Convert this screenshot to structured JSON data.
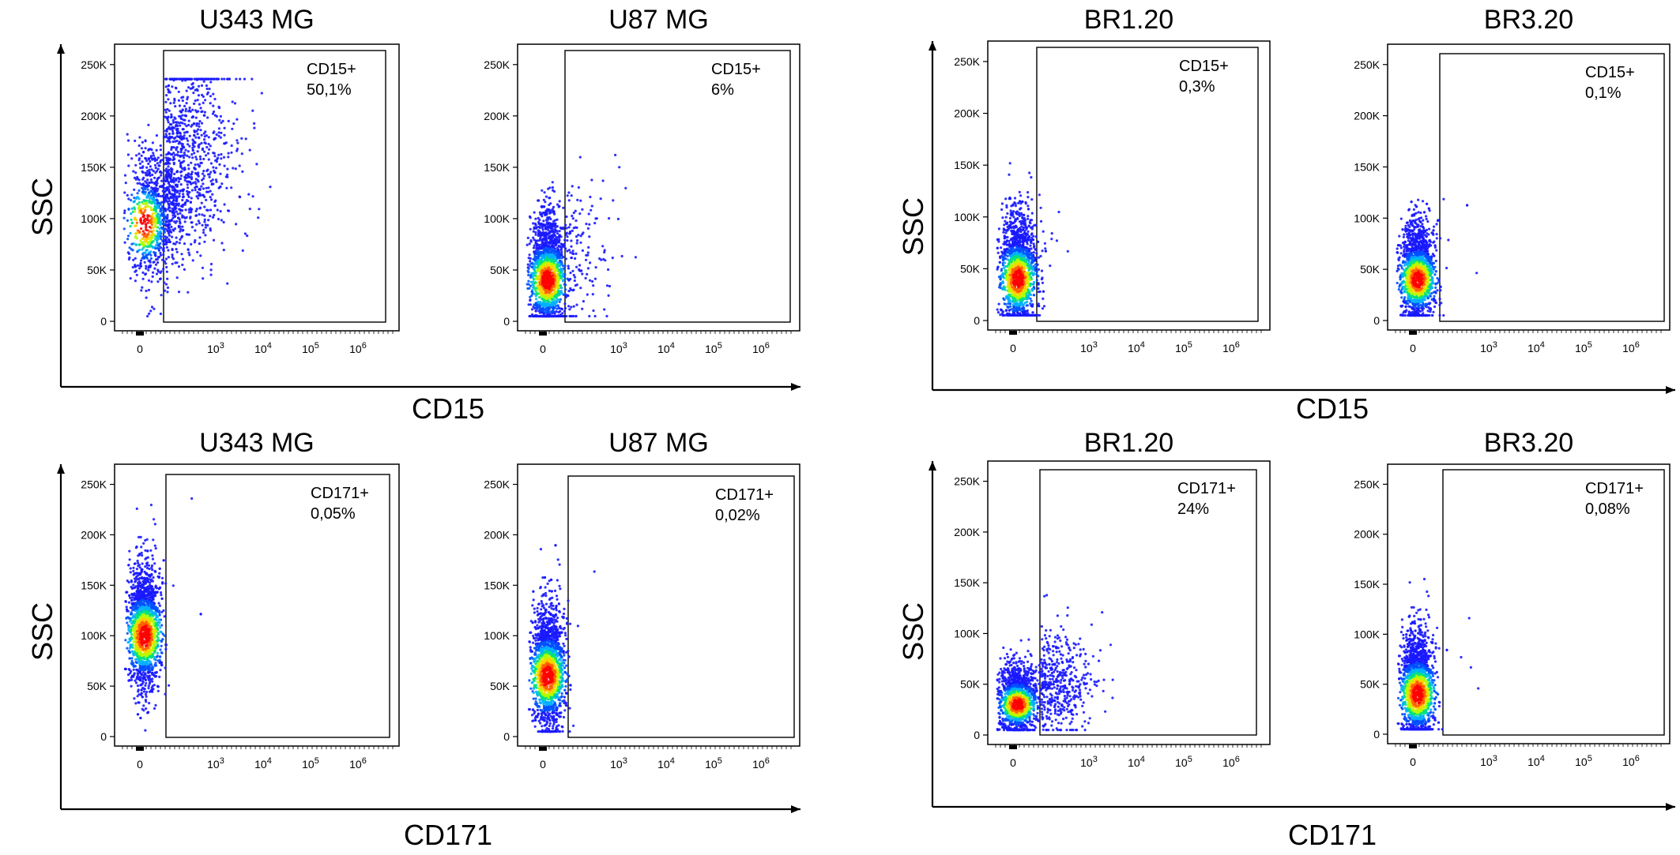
{
  "chart_data": [
    {
      "type": "scatter",
      "title": "U343 MG",
      "xlabel": "CD15",
      "ylabel": "SSC",
      "xticks": [
        "0",
        "10^3",
        "10^4",
        "10^5",
        "10^6"
      ],
      "yticks": [
        "0",
        "50K",
        "100K",
        "150K",
        "200K",
        "250K"
      ],
      "ylim": [
        0,
        262144
      ],
      "gate": {
        "label": "CD15+",
        "value": "50,1%"
      },
      "distribution": {
        "x_center": 0.35,
        "x_spread": 0.35,
        "y_center": 95000,
        "y_spread": 45000,
        "pos_fraction": 0.501
      }
    },
    {
      "type": "scatter",
      "title": "U87 MG",
      "xlabel": "CD15",
      "ylabel": "SSC",
      "xticks": [
        "0",
        "10^3",
        "10^4",
        "10^5",
        "10^6"
      ],
      "yticks": [
        "0",
        "50K",
        "100K",
        "150K",
        "200K",
        "250K"
      ],
      "ylim": [
        0,
        262144
      ],
      "gate": {
        "label": "CD15+",
        "value": "6%"
      },
      "distribution": {
        "x_center": 0.2,
        "x_spread": 0.15,
        "y_center": 40000,
        "y_spread": 40000,
        "pos_fraction": 0.06
      }
    },
    {
      "type": "scatter",
      "title": "BR1.20",
      "xlabel": "CD15",
      "ylabel": "SSC",
      "xticks": [
        "0",
        "10^3",
        "10^4",
        "10^5",
        "10^6"
      ],
      "yticks": [
        "0",
        "50K",
        "100K",
        "150K",
        "200K",
        "250K"
      ],
      "ylim": [
        0,
        262144
      ],
      "gate": {
        "label": "CD15+",
        "value": "0,3%"
      },
      "distribution": {
        "x_center": 0.22,
        "x_spread": 0.18,
        "y_center": 40000,
        "y_spread": 40000,
        "pos_fraction": 0.003
      }
    },
    {
      "type": "scatter",
      "title": "BR3.20",
      "xlabel": "CD15",
      "ylabel": "SSC",
      "xticks": [
        "0",
        "10^3",
        "10^4",
        "10^5",
        "10^6"
      ],
      "yticks": [
        "0",
        "50K",
        "100K",
        "150K",
        "200K",
        "250K"
      ],
      "ylim": [
        0,
        262144
      ],
      "gate": {
        "label": "CD15+",
        "value": "0,1%"
      },
      "distribution": {
        "x_center": 0.2,
        "x_spread": 0.15,
        "y_center": 40000,
        "y_spread": 35000,
        "pos_fraction": 0.001
      }
    },
    {
      "type": "scatter",
      "title": "U343 MG",
      "xlabel": "CD171",
      "ylabel": "SSC",
      "xticks": [
        "0",
        "10^3",
        "10^4",
        "10^5",
        "10^6"
      ],
      "yticks": [
        "0",
        "50K",
        "100K",
        "150K",
        "200K",
        "250K"
      ],
      "ylim": [
        0,
        262144
      ],
      "gate": {
        "label": "CD171+",
        "value": "0,05%"
      },
      "distribution": {
        "x_center": 0.2,
        "x_spread": 0.12,
        "y_center": 100000,
        "y_spread": 45000,
        "pos_fraction": 0.0005
      }
    },
    {
      "type": "scatter",
      "title": "U87 MG",
      "xlabel": "CD171",
      "ylabel": "SSC",
      "xticks": [
        "0",
        "10^3",
        "10^4",
        "10^5",
        "10^6"
      ],
      "yticks": [
        "0",
        "50K",
        "100K",
        "150K",
        "200K",
        "250K"
      ],
      "ylim": [
        0,
        262144
      ],
      "gate": {
        "label": "CD171+",
        "value": "0,02%"
      },
      "distribution": {
        "x_center": 0.22,
        "x_spread": 0.13,
        "y_center": 60000,
        "y_spread": 45000,
        "pos_fraction": 0.0002
      }
    },
    {
      "type": "scatter",
      "title": "BR1.20",
      "xlabel": "CD171",
      "ylabel": "SSC",
      "xticks": [
        "0",
        "10^3",
        "10^4",
        "10^5",
        "10^6"
      ],
      "yticks": [
        "0",
        "50K",
        "100K",
        "150K",
        "200K",
        "250K"
      ],
      "ylim": [
        0,
        262144
      ],
      "gate": {
        "label": "CD171+",
        "value": "24%"
      },
      "distribution": {
        "x_center": 0.2,
        "x_spread": 0.2,
        "y_center": 30000,
        "y_spread": 25000,
        "pos_fraction": 0.24
      }
    },
    {
      "type": "scatter",
      "title": "BR3.20",
      "xlabel": "CD171",
      "ylabel": "SSC",
      "xticks": [
        "0",
        "10^3",
        "10^4",
        "10^5",
        "10^6"
      ],
      "yticks": [
        "0",
        "50K",
        "100K",
        "150K",
        "200K",
        "250K"
      ],
      "ylim": [
        0,
        262144
      ],
      "gate": {
        "label": "CD171+",
        "value": "0,08%"
      },
      "distribution": {
        "x_center": 0.2,
        "x_spread": 0.13,
        "y_center": 40000,
        "y_spread": 40000,
        "pos_fraction": 0.0008
      }
    }
  ],
  "group_labels": {
    "top_left_x": "CD15",
    "top_right_x": "CD15",
    "bottom_left_x": "CD171",
    "bottom_right_x": "CD171",
    "y": "SSC"
  },
  "colors": {
    "density": [
      "#1a1aff",
      "#0050ff",
      "#00b0ff",
      "#00e080",
      "#b0ff00",
      "#ffd000",
      "#ff6000",
      "#ff0000"
    ],
    "frame": "#000000"
  }
}
